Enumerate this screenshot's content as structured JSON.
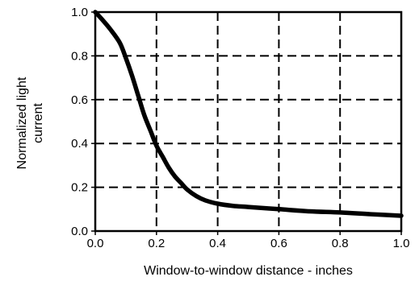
{
  "chart_data": {
    "type": "line",
    "xlabel": "Window-to-window distance - inches",
    "ylabel": [
      "Normalized light",
      "current"
    ],
    "xlim": [
      0.0,
      1.0
    ],
    "ylim": [
      0.0,
      1.0
    ],
    "xticks": [
      0.0,
      0.2,
      0.4,
      0.6,
      0.8,
      1.0
    ],
    "yticks": [
      0.0,
      0.2,
      0.4,
      0.6,
      0.8,
      1.0
    ],
    "xtick_labels": [
      "0.0",
      "0.2",
      "0.4",
      "0.6",
      "0.8",
      "1.0"
    ],
    "ytick_labels": [
      "0.0",
      "0.2",
      "0.4",
      "0.6",
      "0.8",
      "1.0"
    ],
    "grid": true,
    "grid_style": "dashed",
    "series": [
      {
        "x": [
          0.0,
          0.02,
          0.05,
          0.08,
          0.1,
          0.12,
          0.14,
          0.16,
          0.18,
          0.2,
          0.22,
          0.24,
          0.26,
          0.28,
          0.3,
          0.33,
          0.36,
          0.4,
          0.45,
          0.5,
          0.6,
          0.7,
          0.8,
          0.9,
          1.0
        ],
        "y": [
          1.0,
          0.97,
          0.92,
          0.86,
          0.79,
          0.71,
          0.62,
          0.53,
          0.46,
          0.39,
          0.34,
          0.29,
          0.25,
          0.22,
          0.19,
          0.16,
          0.14,
          0.125,
          0.115,
          0.11,
          0.1,
          0.09,
          0.085,
          0.077,
          0.07
        ],
        "color": "#000000"
      }
    ]
  }
}
